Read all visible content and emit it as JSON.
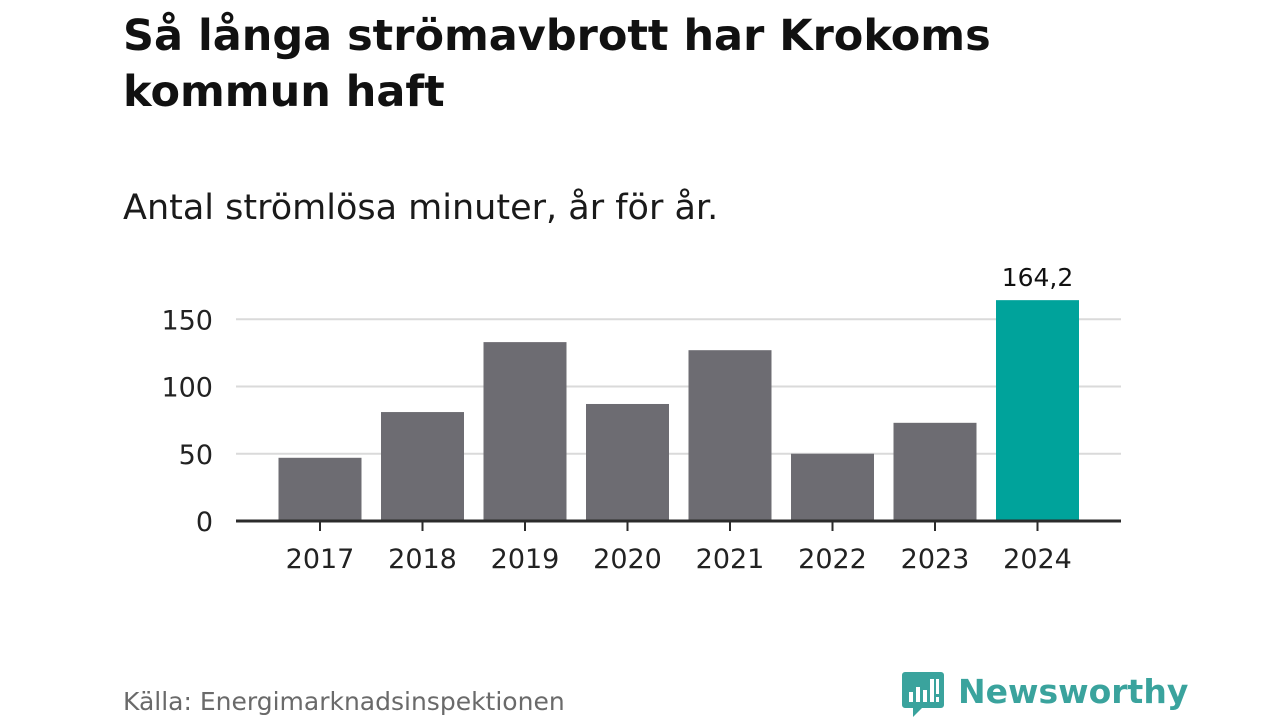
{
  "chart_data": {
    "type": "bar",
    "title_lines": [
      "Så långa strömavbrott har Krokoms",
      "kommun haft"
    ],
    "subtitle": "Antal strömlösa minuter, år för år.",
    "categories": [
      "2017",
      "2018",
      "2019",
      "2020",
      "2021",
      "2022",
      "2023",
      "2024"
    ],
    "values": [
      47,
      81,
      133,
      87,
      127,
      50,
      73,
      164.2
    ],
    "ylim": [
      0,
      165
    ],
    "yticks": [
      0,
      50,
      100,
      150
    ],
    "ytick_labels": [
      "0",
      "50",
      "100",
      "150"
    ],
    "grid": true,
    "bar_color": "#6d6c72",
    "highlight_color": "#00a39b",
    "highlight_index": 7,
    "data_labels": [
      {
        "index": 7,
        "text": "164,2"
      }
    ]
  },
  "footer": {
    "source": "Källa: Energimarknadsinspektionen",
    "brand": "Newsworthy",
    "brand_color": "#3aa39d"
  }
}
